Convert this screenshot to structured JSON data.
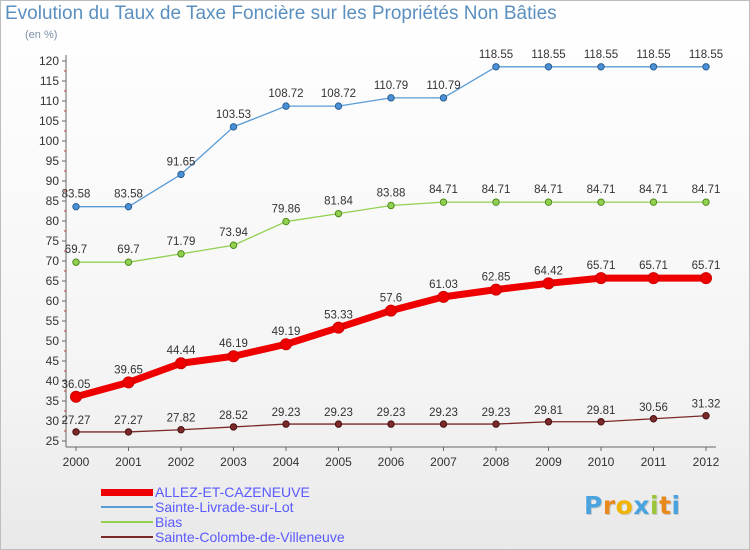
{
  "header": {
    "title": "Evolution du Taux de Taxe Foncière sur les Propriétés Non Bâties",
    "subtitle": "(en %)"
  },
  "logo": {
    "text": "Prox i ti"
  },
  "chart_data": {
    "type": "line",
    "title": "Evolution du Taux de Taxe Foncière sur les Propriétés Non Bâties",
    "ylabel": "(en %)",
    "xlabel": "",
    "x": [
      "2000",
      "2001",
      "2002",
      "2003",
      "2004",
      "2005",
      "2006",
      "2007",
      "2008",
      "2009",
      "2010",
      "2011",
      "2012"
    ],
    "ylim": [
      25,
      120
    ],
    "yticks": [
      25,
      30,
      35,
      40,
      45,
      50,
      55,
      60,
      65,
      70,
      75,
      80,
      85,
      90,
      95,
      100,
      105,
      110,
      115,
      120
    ],
    "grid": false,
    "legend_position": "bottom-left",
    "series": [
      {
        "name": "ALLEZ-ET-CAZENEUVE",
        "color": "#ee0000",
        "values": [
          36.05,
          39.65,
          44.44,
          46.19,
          49.19,
          53.33,
          57.6,
          61.03,
          62.85,
          64.42,
          65.71,
          65.71,
          65.71
        ],
        "labels": [
          "36.05",
          "39.65",
          "44.44",
          "46.19",
          "49.19",
          "53.33",
          "57.6",
          "61.03",
          "62.85",
          "64.42",
          "65.71",
          "65.71",
          "65.71"
        ]
      },
      {
        "name": "Sainte-Livrade-sur-Lot",
        "color": "#5b9bd5",
        "values": [
          83.58,
          83.58,
          91.65,
          103.53,
          108.72,
          108.72,
          110.79,
          110.79,
          118.55,
          118.55,
          118.55,
          118.55,
          118.55
        ],
        "labels": [
          "83.58",
          "83.58",
          "91.65",
          "103.53",
          "108.72",
          "108.72",
          "110.79",
          "110.79",
          "118.55",
          "118.55",
          "118.55",
          "118.55",
          "118.55"
        ]
      },
      {
        "name": "Bias",
        "color": "#92d050",
        "values": [
          69.7,
          69.7,
          71.79,
          73.94,
          79.86,
          81.84,
          83.88,
          84.71,
          84.71,
          84.71,
          84.71,
          84.71,
          84.71
        ],
        "labels": [
          "69.7",
          "69.7",
          "71.79",
          "73.94",
          "79.86",
          "81.84",
          "83.88",
          "84.71",
          "84.71",
          "84.71",
          "84.71",
          "84.71",
          "84.71"
        ]
      },
      {
        "name": "Sainte-Colombe-de-Villeneuve",
        "color": "#7b2a2a",
        "values": [
          27.27,
          27.27,
          27.82,
          28.52,
          29.23,
          29.23,
          29.23,
          29.23,
          29.23,
          29.81,
          29.81,
          30.56,
          31.32
        ],
        "labels": [
          "27.27",
          "27.27",
          "27.82",
          "28.52",
          "29.23",
          "29.23",
          "29.23",
          "29.23",
          "29.23",
          "29.81",
          "29.81",
          "30.56",
          "31.32"
        ]
      }
    ]
  }
}
